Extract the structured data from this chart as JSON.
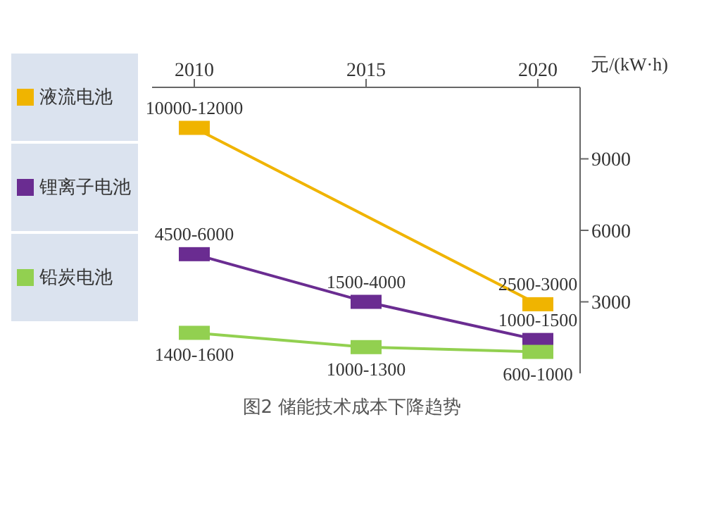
{
  "chart_data": {
    "type": "line",
    "categories": [
      "2010",
      "2015",
      "2020"
    ],
    "ylabel": "元/(kW·h)",
    "ylim": [
      0,
      12000
    ],
    "yticks": [
      3000,
      6000,
      9000
    ],
    "legend": "left",
    "marker": "square",
    "grid": false,
    "series": [
      {
        "name": "液流电池",
        "color": "#f0b400",
        "values": [
          10300,
          null,
          2900
        ],
        "value_labels": [
          "10000-12000",
          null,
          "2500-3000"
        ]
      },
      {
        "name": "锂离子电池",
        "color": "#6a2c91",
        "values": [
          5000,
          3000,
          1400
        ],
        "value_labels": [
          "4500-6000",
          "1500-4000",
          "1000-1500"
        ]
      },
      {
        "name": "铅炭电池",
        "color": "#92d050",
        "values": [
          1700,
          1100,
          900
        ],
        "value_labels": [
          "1400-1600",
          "1000-1300",
          "600-1000"
        ]
      }
    ],
    "annotations": [
      "图2 储能技术成本下降趋势"
    ]
  }
}
